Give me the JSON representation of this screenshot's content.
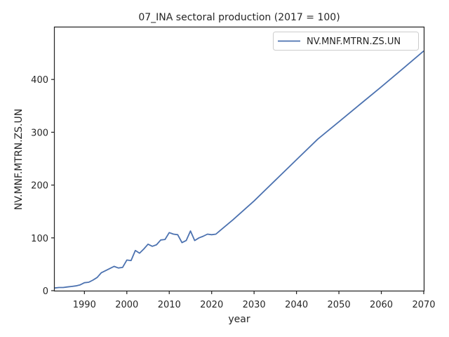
{
  "chart_data": {
    "type": "line",
    "title": "07_INA sectoral production (2017 = 100)",
    "xlabel": "year",
    "ylabel": "NV.MNF.MTRN.ZS.UN",
    "xlim": [
      1983,
      2070
    ],
    "ylim": [
      0,
      500
    ],
    "xticks": [
      1990,
      2000,
      2010,
      2020,
      2030,
      2040,
      2050,
      2060,
      2070
    ],
    "yticks": [
      0,
      100,
      200,
      300,
      400
    ],
    "grid": false,
    "legend": {
      "position": "top-right"
    },
    "series": [
      {
        "name": "NV.MNF.MTRN.ZS.UN",
        "color": "#4c72b0",
        "x": [
          1983,
          1984,
          1985,
          1986,
          1987,
          1988,
          1989,
          1990,
          1991,
          1992,
          1993,
          1994,
          1995,
          1996,
          1997,
          1998,
          1999,
          2000,
          2001,
          2002,
          2003,
          2004,
          2005,
          2006,
          2007,
          2008,
          2009,
          2010,
          2011,
          2012,
          2013,
          2014,
          2015,
          2016,
          2017,
          2018,
          2019,
          2020,
          2021,
          2022,
          2025,
          2030,
          2035,
          2040,
          2045,
          2050,
          2055,
          2060,
          2065,
          2070
        ],
        "y": [
          5,
          6,
          6,
          7,
          8,
          9,
          11,
          15,
          16,
          20,
          25,
          34,
          38,
          42,
          46,
          43,
          44,
          58,
          57,
          76,
          71,
          79,
          88,
          84,
          87,
          96,
          97,
          110,
          107,
          106,
          91,
          95,
          113,
          95,
          100,
          103,
          107,
          106,
          107,
          114,
          134,
          170,
          209,
          248,
          287,
          320,
          353,
          386,
          420,
          454
        ]
      }
    ]
  }
}
